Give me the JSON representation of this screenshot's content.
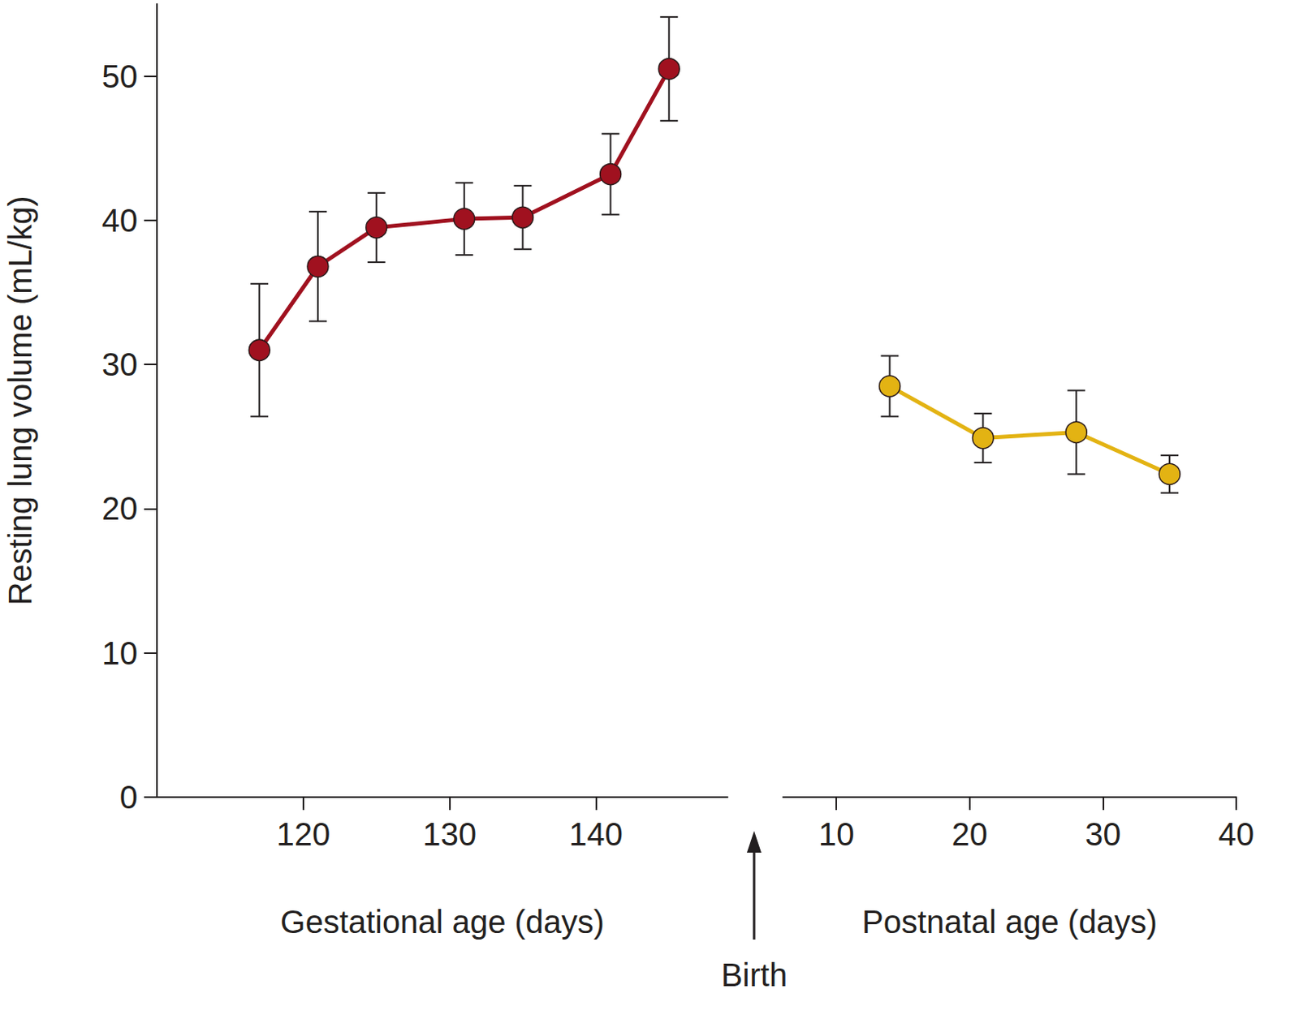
{
  "chart_data": [
    {
      "type": "line",
      "xlabel": "Gestational age (days)",
      "ylabel": "Resting lung volume (mL/kg)",
      "x": [
        117,
        121,
        125,
        131,
        135,
        141,
        145
      ],
      "values": [
        31.0,
        36.8,
        39.5,
        40.1,
        40.2,
        43.2,
        50.5
      ],
      "errors": [
        4.6,
        3.8,
        2.4,
        2.5,
        2.2,
        2.8,
        3.6
      ],
      "color": "#a0111f",
      "marker": "circle",
      "xlim": [
        110,
        149
      ],
      "xticks": [
        120,
        130,
        140
      ],
      "ylim": [
        0,
        55
      ],
      "yticks": [
        0,
        10,
        20,
        30,
        40,
        50
      ],
      "grid": false
    },
    {
      "type": "line",
      "xlabel": "Postnatal age (days)",
      "annotation": "Birth",
      "x": [
        14,
        21,
        28,
        35
      ],
      "values": [
        28.5,
        24.9,
        25.3,
        22.4
      ],
      "errors": [
        2.1,
        1.7,
        2.9,
        1.3
      ],
      "color": "#e3b313",
      "marker": "circle",
      "xlim": [
        6,
        40
      ],
      "xticks": [
        10,
        20,
        30,
        40
      ],
      "grid": false
    }
  ]
}
